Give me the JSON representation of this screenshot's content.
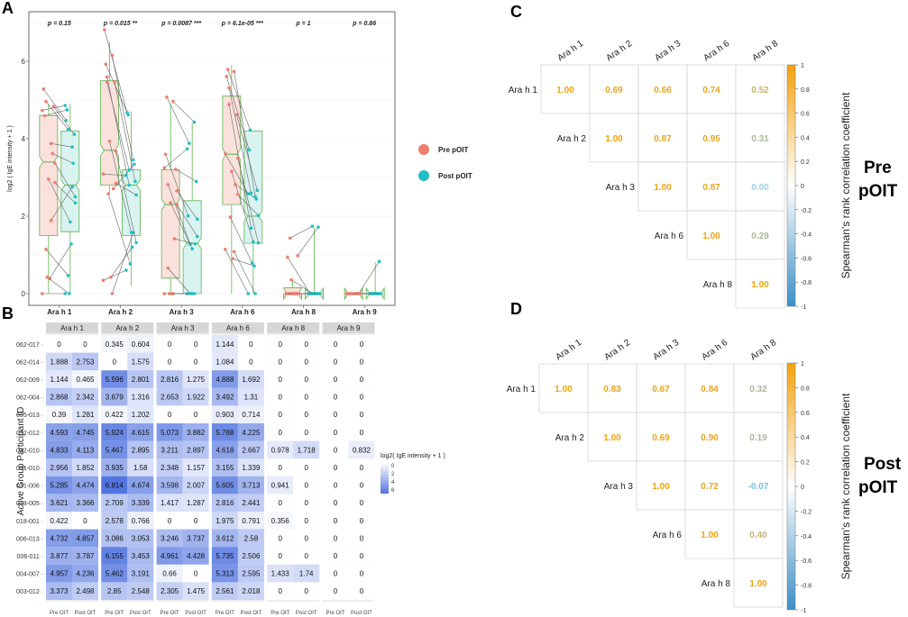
{
  "panel_labels": {
    "a": "A",
    "b": "B",
    "c": "C",
    "d": "D"
  },
  "colors": {
    "pre": "#F07C6E",
    "post": "#22BFC2",
    "pre_box": "#FBE1DC",
    "post_box": "#D9F3F1",
    "box_line": "#5DB54C",
    "heat_low": "#FFFFFF",
    "heat_high": "#5275E0",
    "corr_pos": "#F5A20A",
    "corr_neg": "#6BB7DE",
    "corr_mid": "#FFFFFF"
  },
  "chart_data": [
    {
      "panel": "A",
      "type": "box",
      "ylabel": "log2 ( IgE intensity + 1 )",
      "ylim": [
        0,
        7
      ],
      "yticks": [
        "0",
        "2",
        "4",
        "6"
      ],
      "categories": [
        "Ara h 1",
        "Ara h 2",
        "Ara h 3",
        "Ara h 6",
        "Ara h 8",
        "Ara h 9"
      ],
      "p_values": [
        "p = 0.15",
        "p = 0.015 **",
        "p = 0.0087 ***",
        "p = 6.1e-05 ***",
        "p = 1",
        "p = 0.86"
      ],
      "legend": {
        "pre": "Pre pOIT",
        "post": "Post pOIT"
      },
      "series": [
        {
          "name": "Pre pOIT",
          "boxes": [
            [
              0,
              1.5,
              3.4,
              4.6,
              4.9
            ],
            [
              2.6,
              2.8,
              3.7,
              5.5,
              6.5
            ],
            [
              0,
              0.4,
              2.3,
              3.2,
              4.9
            ],
            [
              0,
              2.3,
              3.6,
              5.1,
              5.9
            ],
            [
              0,
              0,
              0,
              0.15,
              0.35
            ],
            [
              0,
              0,
              0,
              0,
              0
            ]
          ]
        },
        {
          "name": "Post pOIT",
          "boxes": [
            [
              0,
              1.6,
              2.8,
              4.2,
              4.9
            ],
            [
              0.2,
              1.5,
              2.8,
              3.2,
              4.7
            ],
            [
              0,
              0,
              1.3,
              2.4,
              4.4
            ],
            [
              0,
              1.3,
              2.0,
              4.2,
              4.2
            ],
            [
              0,
              0,
              0,
              0,
              1.7
            ],
            [
              0,
              0,
              0,
              0,
              0.8
            ]
          ]
        }
      ]
    },
    {
      "panel": "B",
      "type": "heatmap",
      "ylabel": "Active Group Participant ID",
      "groups": [
        "Ara h 1",
        "Ara h 2",
        "Ara h 3",
        "Ara h 6",
        "Ara h 8",
        "Ara h 9"
      ],
      "xlabels": [
        "Pre OIT",
        "Post OIT"
      ],
      "rows": [
        "062-017",
        "062-014",
        "062-009",
        "062-004",
        "035-013",
        "032-012",
        "032-010",
        "031-010",
        "031-006",
        "018-005",
        "018-001",
        "006-013",
        "006-011",
        "004-007",
        "003-012"
      ],
      "values": [
        [
          [
            "0",
            "0"
          ],
          [
            "0.345",
            "0.604"
          ],
          [
            "0",
            "0"
          ],
          [
            "1.144",
            "0"
          ],
          [
            "0",
            "0"
          ],
          [
            "0",
            "0"
          ]
        ],
        [
          [
            "1.888",
            "2.753"
          ],
          [
            "0",
            "1.575"
          ],
          [
            "0",
            "0"
          ],
          [
            "1.084",
            "0"
          ],
          [
            "0",
            "0"
          ],
          [
            "0",
            "0"
          ]
        ],
        [
          [
            "1.144",
            "0.465"
          ],
          [
            "5.596",
            "2.801"
          ],
          [
            "2.816",
            "1.275"
          ],
          [
            "4.888",
            "1.692"
          ],
          [
            "0",
            "0"
          ],
          [
            "0",
            "0"
          ]
        ],
        [
          [
            "2.868",
            "2.342"
          ],
          [
            "3.679",
            "1.316"
          ],
          [
            "2.653",
            "1.922"
          ],
          [
            "3.492",
            "1.31"
          ],
          [
            "0",
            "0"
          ],
          [
            "0",
            "0"
          ]
        ],
        [
          [
            "0.39",
            "1.281"
          ],
          [
            "0.422",
            "1.202"
          ],
          [
            "0",
            "0"
          ],
          [
            "0.903",
            "0.714"
          ],
          [
            "0",
            "0"
          ],
          [
            "0",
            "0"
          ]
        ],
        [
          [
            "4.593",
            "4.745"
          ],
          [
            "5.924",
            "4.615"
          ],
          [
            "5.073",
            "3.882"
          ],
          [
            "5.788",
            "4.225"
          ],
          [
            "0",
            "0"
          ],
          [
            "0",
            "0"
          ]
        ],
        [
          [
            "4.833",
            "4.113"
          ],
          [
            "5.467",
            "2.895"
          ],
          [
            "3.211",
            "2.897"
          ],
          [
            "4.618",
            "2.667"
          ],
          [
            "0.978",
            "1.718"
          ],
          [
            "0",
            "0.832"
          ]
        ],
        [
          [
            "2.956",
            "1.852"
          ],
          [
            "3.935",
            "1.58"
          ],
          [
            "2.348",
            "1.157"
          ],
          [
            "3.155",
            "1.339"
          ],
          [
            "0",
            "0"
          ],
          [
            "0",
            "0"
          ]
        ],
        [
          [
            "5.285",
            "4.474"
          ],
          [
            "6.814",
            "4.674"
          ],
          [
            "3.598",
            "2.007"
          ],
          [
            "5.605",
            "3.713"
          ],
          [
            "0.941",
            "0"
          ],
          [
            "0",
            "0"
          ]
        ],
        [
          [
            "3.621",
            "3.366"
          ],
          [
            "2.709",
            "3.339"
          ],
          [
            "1.417",
            "1.287"
          ],
          [
            "2.816",
            "2.441"
          ],
          [
            "0",
            "0"
          ],
          [
            "0",
            "0"
          ]
        ],
        [
          [
            "0.422",
            "0"
          ],
          [
            "2.578",
            "0.766"
          ],
          [
            "0",
            "0"
          ],
          [
            "1.975",
            "0.791"
          ],
          [
            "0.356",
            "0"
          ],
          [
            "0",
            "0"
          ]
        ],
        [
          [
            "4.732",
            "4.857"
          ],
          [
            "3.086",
            "3.053"
          ],
          [
            "3.246",
            "3.737"
          ],
          [
            "3.612",
            "2.58"
          ],
          [
            "0",
            "0"
          ],
          [
            "0",
            "0"
          ]
        ],
        [
          [
            "3.877",
            "3.787"
          ],
          [
            "6.155",
            "3.453"
          ],
          [
            "4.961",
            "4.428"
          ],
          [
            "5.735",
            "2.506"
          ],
          [
            "0",
            "0"
          ],
          [
            "0",
            "0"
          ]
        ],
        [
          [
            "4.957",
            "4.236"
          ],
          [
            "5.462",
            "3.191"
          ],
          [
            "0.66",
            "0"
          ],
          [
            "5.313",
            "2.595"
          ],
          [
            "1.433",
            "1.74"
          ],
          [
            "0",
            "0"
          ]
        ],
        [
          [
            "3.373",
            "2.498"
          ],
          [
            "2.85",
            "2.548"
          ],
          [
            "2.305",
            "1.475"
          ],
          [
            "2.561",
            "2.018"
          ],
          [
            "0",
            "0"
          ],
          [
            "0",
            "0"
          ]
        ]
      ],
      "legend_title": "log2( IgE intensity + 1 )",
      "legend_ticks": [
        "0",
        "2",
        "4",
        "6"
      ]
    },
    {
      "panel": "C",
      "type": "heatmap",
      "title": "Pre pOIT",
      "labels": [
        "Ara h 1",
        "Ara h 2",
        "Ara h 3",
        "Ara h 6",
        "Ara h 8"
      ],
      "matrix": [
        [
          "1.00",
          "0.69",
          "0.66",
          "0.74",
          "0.52"
        ],
        [
          "",
          "1.00",
          "0.87",
          "0.95",
          "0.31"
        ],
        [
          "",
          "",
          "1.00",
          "0.87",
          "0.00"
        ],
        [
          "",
          "",
          "",
          "1.00",
          "0.29"
        ],
        [
          "",
          "",
          "",
          "",
          "1.00"
        ]
      ],
      "colorbar_label": "Spearman's rank correlation coefficient",
      "colorbar_ticks": [
        "1",
        "0.8",
        "0.6",
        "0.4",
        "0.2",
        "0",
        "-0.2",
        "-0.4",
        "-0.6",
        "-0.8",
        "-1"
      ]
    },
    {
      "panel": "D",
      "type": "heatmap",
      "title": "Post pOIT",
      "labels": [
        "Ara h 1",
        "Ara h 2",
        "Ara h 3",
        "Ara h 6",
        "Ara h 8"
      ],
      "matrix": [
        [
          "1.00",
          "0.83",
          "0.67",
          "0.84",
          "0.32"
        ],
        [
          "",
          "1.00",
          "0.69",
          "0.90",
          "0.19"
        ],
        [
          "",
          "",
          "1.00",
          "0.72",
          "-0.07"
        ],
        [
          "",
          "",
          "",
          "1.00",
          "0.40"
        ],
        [
          "",
          "",
          "",
          "",
          "1.00"
        ]
      ],
      "colorbar_label": "Spearman's rank correlation coefficient",
      "colorbar_ticks": [
        "1",
        "0.8",
        "0.6",
        "0.4",
        "0.2",
        "0",
        "-0.2",
        "-0.4",
        "-0.6",
        "-0.8",
        "-1"
      ]
    }
  ]
}
